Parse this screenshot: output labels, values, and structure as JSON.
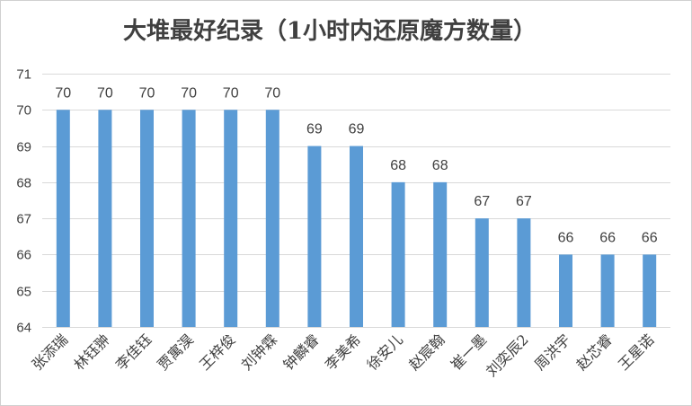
{
  "chart_data": {
    "type": "bar",
    "title": "大堆最好纪录（1小时内还原魔方数量）",
    "categories": [
      "张添瑞",
      "林钰翀",
      "李佳钰",
      "贾寓淏",
      "王梓俊",
      "刘钟霖",
      "钟麟睿",
      "李美希",
      "徐安儿",
      "赵宸翰",
      "崔一墨",
      "刘奕辰2",
      "周洪宇",
      "赵芯睿",
      "王星诺"
    ],
    "values": [
      70,
      70,
      70,
      70,
      70,
      70,
      69,
      69,
      68,
      68,
      67,
      67,
      66,
      66,
      66
    ],
    "ylim": [
      64,
      71
    ],
    "yticks": [
      64,
      65,
      66,
      67,
      68,
      69,
      70,
      71
    ],
    "grid": true,
    "legend": "none",
    "xlabel": "",
    "ylabel": "",
    "colors": {
      "bar": "#5b9bd5",
      "text": "#404040",
      "grid": "#d9d9d9"
    }
  }
}
